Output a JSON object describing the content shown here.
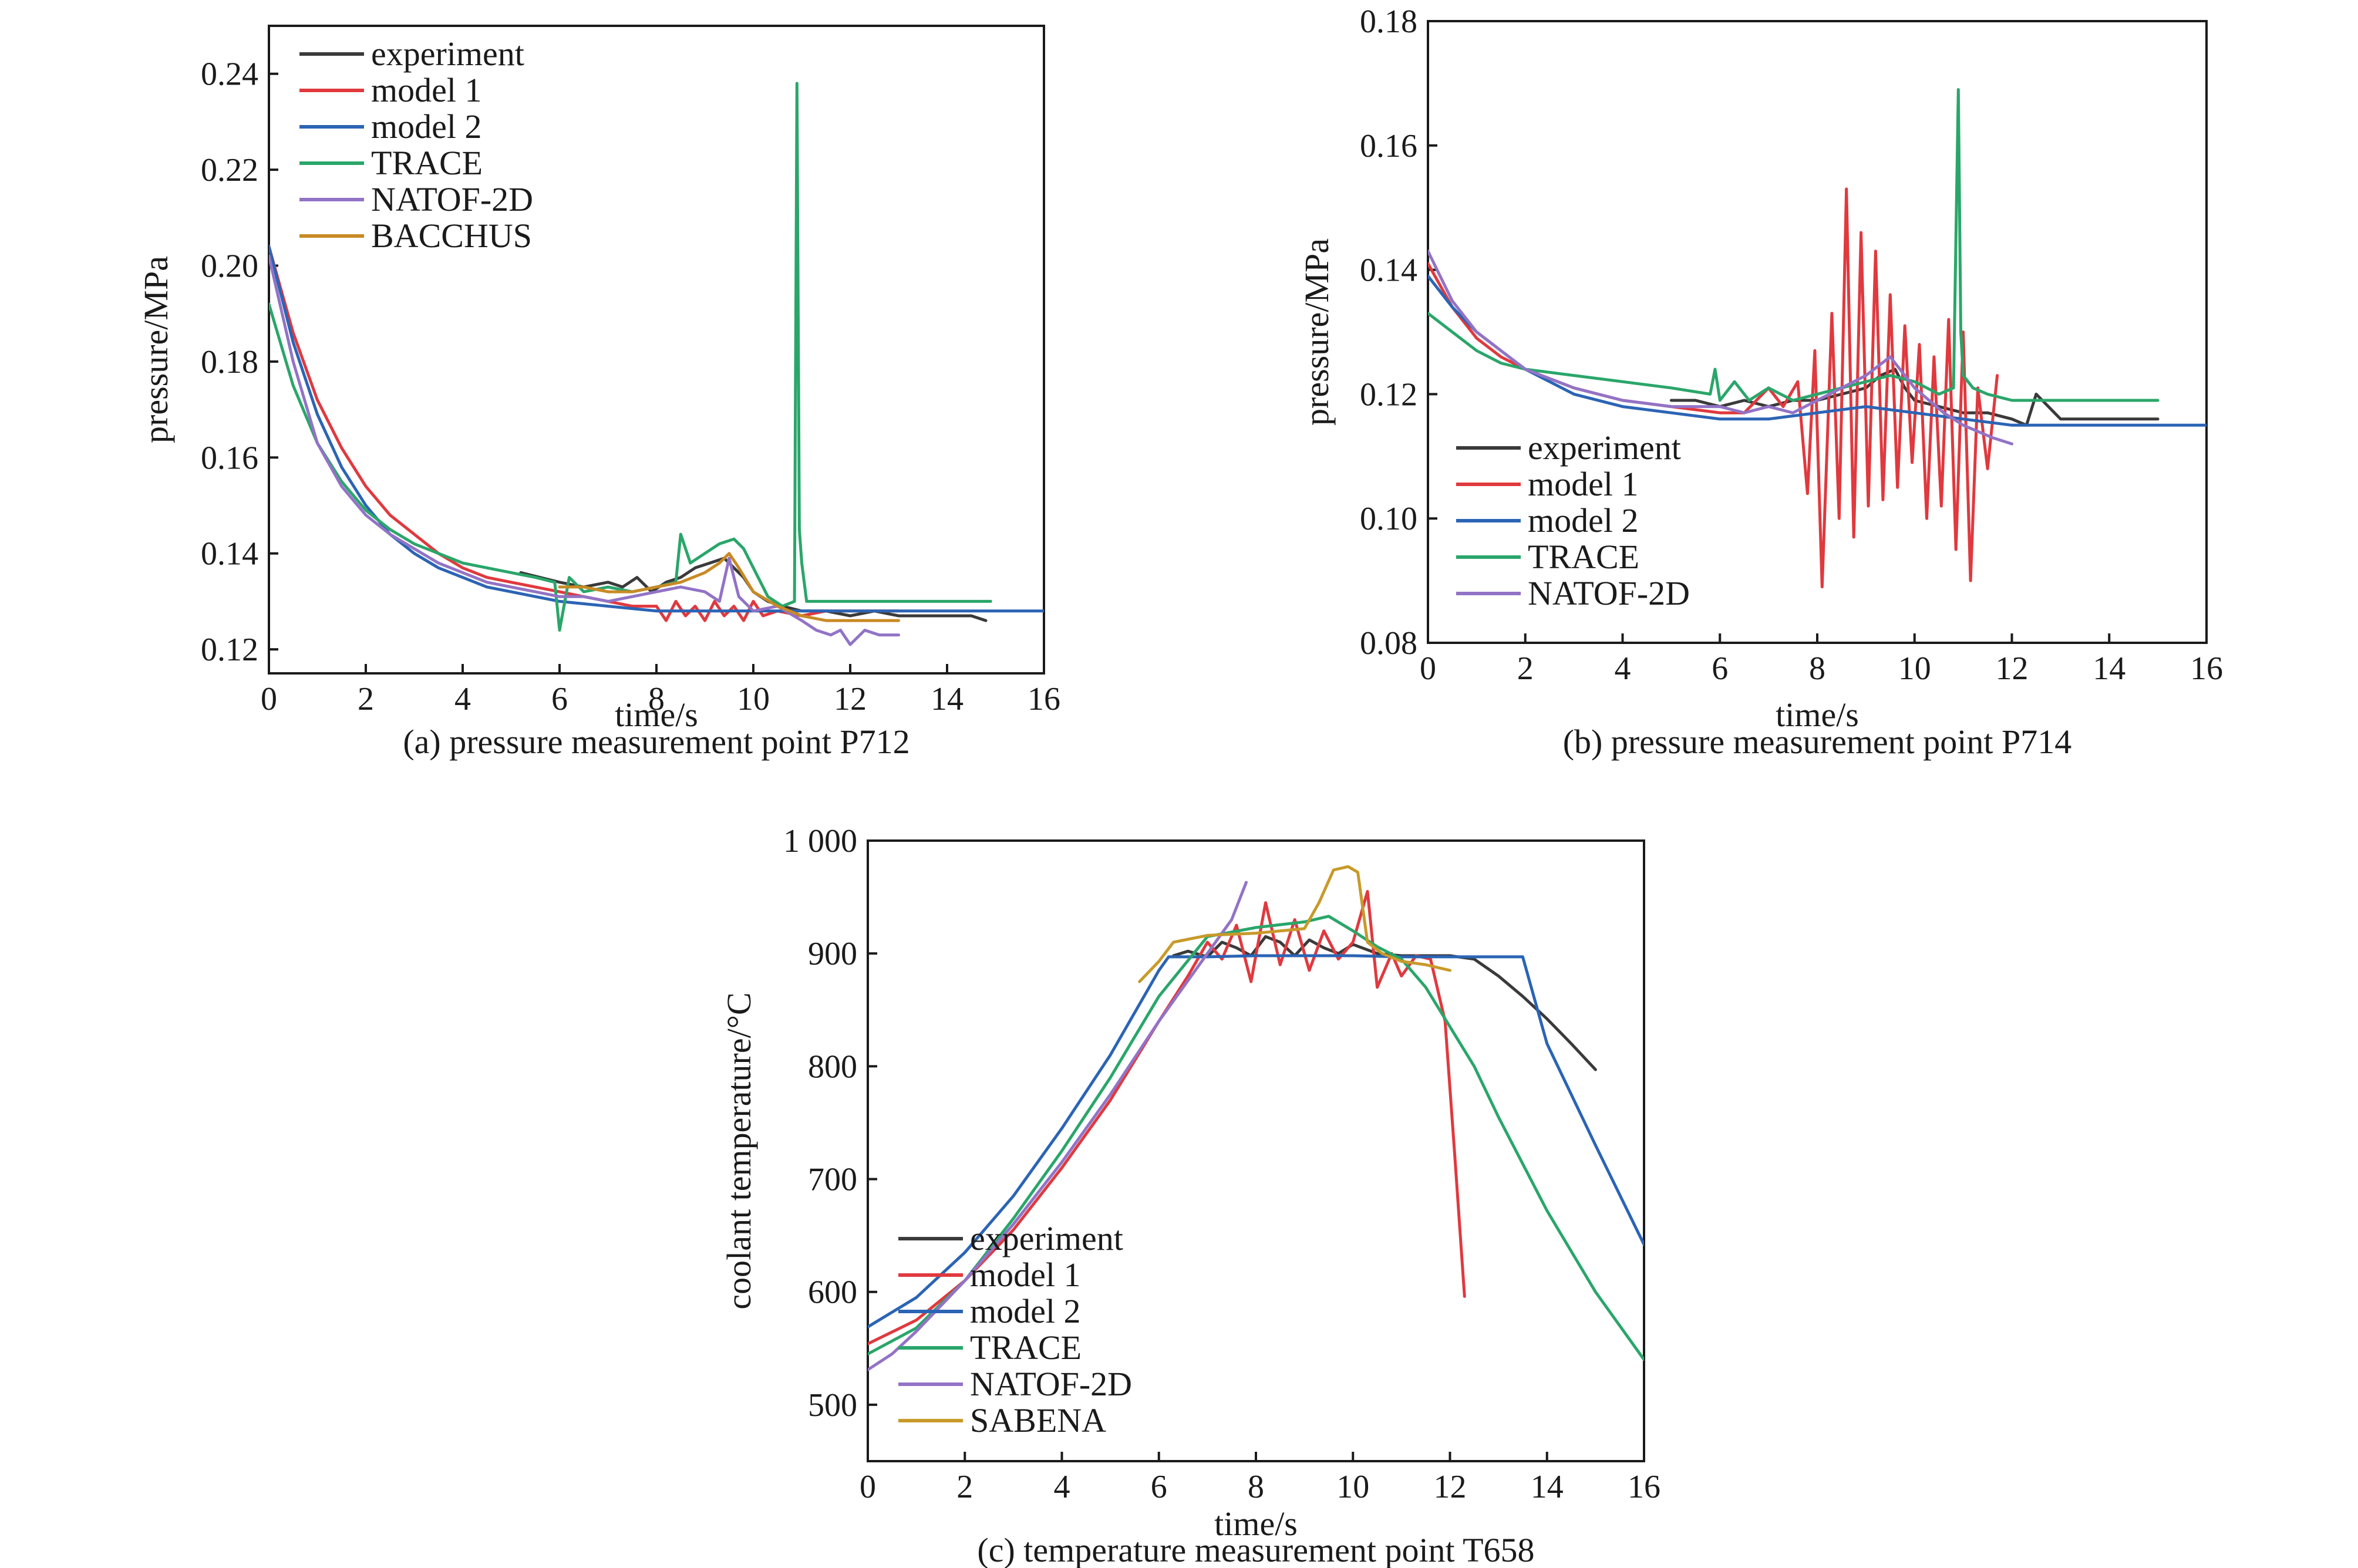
{
  "colors": {
    "experiment": "#3a3a3a",
    "model 1": "#e0393e",
    "model 2": "#2b64b5",
    "TRACE": "#2aa66a",
    "NATOF-2D": "#9273c6",
    "BACCHUS": "#c88a24",
    "SABENA": "#c89a2a"
  },
  "chart_data": [
    {
      "type": "line",
      "caption": "(a) pressure measurement point P712",
      "title": "",
      "xlabel": "time/s",
      "ylabel": "pressure/MPa",
      "xlim": [
        0,
        16
      ],
      "ylim": [
        0.115,
        0.25
      ],
      "xticks": [
        0,
        2,
        4,
        6,
        8,
        10,
        12,
        14,
        16
      ],
      "yticks": [
        0.12,
        0.14,
        0.16,
        0.18,
        0.2,
        0.22,
        0.24
      ],
      "ytick_labels": [
        "0.12",
        "0.14",
        "0.16",
        "0.18",
        "0.20",
        "0.22",
        "0.24"
      ],
      "legend_position": "top-left",
      "series": [
        {
          "name": "experiment",
          "x": [
            5.2,
            6.0,
            6.5,
            7.0,
            7.3,
            7.6,
            7.9,
            8.2,
            8.5,
            8.8,
            9.1,
            9.4,
            9.6,
            9.8,
            10.0,
            10.3,
            10.6,
            11.0,
            11.5,
            12.0,
            12.5,
            13.0,
            13.5,
            14.0,
            14.5,
            14.8
          ],
          "y": [
            0.136,
            0.134,
            0.133,
            0.134,
            0.133,
            0.135,
            0.132,
            0.134,
            0.135,
            0.137,
            0.138,
            0.139,
            0.137,
            0.135,
            0.132,
            0.13,
            0.129,
            0.128,
            0.128,
            0.127,
            0.128,
            0.127,
            0.127,
            0.127,
            0.127,
            0.126
          ]
        },
        {
          "name": "model 1",
          "x": [
            0,
            0.5,
            1,
            1.5,
            2,
            2.5,
            3,
            3.5,
            4,
            4.5,
            5,
            5.5,
            6,
            6.5,
            7,
            7.5,
            8,
            8.2,
            8.4,
            8.6,
            8.8,
            9.0,
            9.2,
            9.4,
            9.6,
            9.8,
            10.0,
            10.2,
            10.5,
            11.0,
            11.5,
            12.0,
            12.5,
            13.0
          ],
          "y": [
            0.204,
            0.186,
            0.172,
            0.162,
            0.154,
            0.148,
            0.144,
            0.14,
            0.137,
            0.135,
            0.134,
            0.133,
            0.132,
            0.131,
            0.13,
            0.129,
            0.129,
            0.126,
            0.13,
            0.127,
            0.129,
            0.126,
            0.13,
            0.127,
            0.129,
            0.126,
            0.13,
            0.127,
            0.128,
            0.127,
            0.128,
            0.128,
            0.128,
            0.128
          ]
        },
        {
          "name": "model 2",
          "x": [
            0,
            0.5,
            1,
            1.5,
            2,
            2.5,
            3,
            3.5,
            4,
            4.5,
            5,
            6,
            7,
            8,
            9,
            10,
            11,
            12,
            13,
            14,
            15,
            16
          ],
          "y": [
            0.204,
            0.184,
            0.169,
            0.158,
            0.15,
            0.144,
            0.14,
            0.137,
            0.135,
            0.133,
            0.132,
            0.13,
            0.129,
            0.128,
            0.128,
            0.128,
            0.128,
            0.128,
            0.128,
            0.128,
            0.128,
            0.128
          ]
        },
        {
          "name": "TRACE",
          "x": [
            0,
            0.5,
            1,
            1.5,
            2,
            2.5,
            3,
            3.5,
            4,
            4.5,
            5,
            5.5,
            5.9,
            6.0,
            6.2,
            6.5,
            7.0,
            7.5,
            8.0,
            8.4,
            8.5,
            8.7,
            9.0,
            9.3,
            9.6,
            9.8,
            10.0,
            10.3,
            10.6,
            10.85,
            10.9,
            10.95,
            11.0,
            11.1,
            11.5,
            12.0,
            13.0,
            14.0,
            14.9
          ],
          "y": [
            0.192,
            0.175,
            0.163,
            0.155,
            0.149,
            0.145,
            0.142,
            0.14,
            0.138,
            0.137,
            0.136,
            0.135,
            0.134,
            0.124,
            0.135,
            0.132,
            0.133,
            0.132,
            0.133,
            0.134,
            0.144,
            0.138,
            0.14,
            0.142,
            0.143,
            0.141,
            0.137,
            0.131,
            0.129,
            0.13,
            0.238,
            0.145,
            0.138,
            0.13,
            0.13,
            0.13,
            0.13,
            0.13,
            0.13
          ]
        },
        {
          "name": "NATOF-2D",
          "x": [
            0,
            0.5,
            1,
            1.5,
            2,
            2.5,
            3,
            3.5,
            4,
            4.5,
            5,
            5.5,
            6,
            6.5,
            7,
            7.5,
            8,
            8.5,
            9.0,
            9.3,
            9.5,
            9.7,
            10.0,
            10.5,
            11.0,
            11.3,
            11.6,
            11.8,
            12.0,
            12.3,
            12.6,
            13.0
          ],
          "y": [
            0.202,
            0.18,
            0.163,
            0.154,
            0.148,
            0.144,
            0.141,
            0.138,
            0.136,
            0.134,
            0.133,
            0.132,
            0.131,
            0.131,
            0.13,
            0.131,
            0.132,
            0.133,
            0.132,
            0.13,
            0.139,
            0.131,
            0.128,
            0.129,
            0.126,
            0.124,
            0.123,
            0.124,
            0.121,
            0.124,
            0.123,
            0.123
          ]
        },
        {
          "name": "BACCHUS",
          "x": [
            6.0,
            6.5,
            7.0,
            7.5,
            8.0,
            8.5,
            9.0,
            9.3,
            9.5,
            9.7,
            10.0,
            10.5,
            11.0,
            11.5,
            12.0,
            12.5,
            13.0
          ],
          "y": [
            0.133,
            0.133,
            0.132,
            0.132,
            0.133,
            0.134,
            0.136,
            0.138,
            0.14,
            0.137,
            0.132,
            0.129,
            0.127,
            0.126,
            0.126,
            0.126,
            0.126
          ]
        }
      ]
    },
    {
      "type": "line",
      "caption": "(b) pressure measurement point P714",
      "title": "",
      "xlabel": "time/s",
      "ylabel": "pressure/MPa",
      "xlim": [
        0,
        16
      ],
      "ylim": [
        0.08,
        0.18
      ],
      "xticks": [
        0,
        2,
        4,
        6,
        8,
        10,
        12,
        14,
        16
      ],
      "yticks": [
        0.08,
        0.1,
        0.12,
        0.14,
        0.16,
        0.18
      ],
      "ytick_labels": [
        "0.08",
        "0.10",
        "0.12",
        "0.14",
        "0.16",
        "0.18"
      ],
      "legend_position": "bottom-left",
      "series": [
        {
          "name": "experiment",
          "x": [
            5.0,
            5.5,
            6.0,
            6.5,
            7.0,
            7.5,
            8.0,
            8.5,
            9.0,
            9.3,
            9.6,
            9.8,
            10.0,
            10.5,
            11.0,
            11.5,
            12.0,
            12.3,
            12.5,
            13.0,
            14.0,
            15.0
          ],
          "y": [
            0.119,
            0.119,
            0.118,
            0.119,
            0.118,
            0.119,
            0.119,
            0.12,
            0.121,
            0.123,
            0.124,
            0.121,
            0.119,
            0.118,
            0.117,
            0.117,
            0.116,
            0.115,
            0.12,
            0.116,
            0.116,
            0.116
          ]
        },
        {
          "name": "model 1",
          "x": [
            0,
            0.5,
            1,
            1.5,
            2,
            3,
            4,
            5,
            6,
            6.5,
            7.0,
            7.3,
            7.6,
            7.8,
            7.95,
            8.1,
            8.3,
            8.45,
            8.6,
            8.75,
            8.9,
            9.05,
            9.2,
            9.35,
            9.5,
            9.65,
            9.8,
            9.95,
            10.1,
            10.25,
            10.4,
            10.55,
            10.7,
            10.85,
            11.0,
            11.15,
            11.3,
            11.5,
            11.7
          ],
          "y": [
            0.141,
            0.134,
            0.129,
            0.126,
            0.124,
            0.121,
            0.119,
            0.118,
            0.117,
            0.117,
            0.121,
            0.118,
            0.122,
            0.104,
            0.127,
            0.089,
            0.133,
            0.1,
            0.153,
            0.097,
            0.146,
            0.102,
            0.143,
            0.103,
            0.136,
            0.105,
            0.131,
            0.109,
            0.128,
            0.1,
            0.126,
            0.102,
            0.132,
            0.095,
            0.13,
            0.09,
            0.121,
            0.108,
            0.123
          ]
        },
        {
          "name": "model 2",
          "x": [
            0,
            0.5,
            1,
            1.5,
            2,
            2.5,
            3,
            4,
            5,
            6,
            7,
            8,
            9,
            10,
            11,
            12,
            13,
            14,
            15,
            16
          ],
          "y": [
            0.139,
            0.134,
            0.13,
            0.127,
            0.124,
            0.122,
            0.12,
            0.118,
            0.117,
            0.116,
            0.116,
            0.117,
            0.118,
            0.117,
            0.116,
            0.115,
            0.115,
            0.115,
            0.115,
            0.115
          ]
        },
        {
          "name": "TRACE",
          "x": [
            0,
            0.5,
            1,
            1.5,
            2,
            3,
            4,
            5,
            5.8,
            5.9,
            6.0,
            6.3,
            6.6,
            7.0,
            7.5,
            8.0,
            8.5,
            9.0,
            9.5,
            10.0,
            10.5,
            10.8,
            10.9,
            10.95,
            11.0,
            11.2,
            11.5,
            12.0,
            13.0,
            14.0,
            15.0
          ],
          "y": [
            0.133,
            0.13,
            0.127,
            0.125,
            0.124,
            0.123,
            0.122,
            0.121,
            0.12,
            0.124,
            0.119,
            0.122,
            0.119,
            0.121,
            0.119,
            0.12,
            0.121,
            0.122,
            0.123,
            0.122,
            0.12,
            0.121,
            0.169,
            0.13,
            0.123,
            0.121,
            0.12,
            0.119,
            0.119,
            0.119,
            0.119
          ]
        },
        {
          "name": "NATOF-2D",
          "x": [
            0,
            0.5,
            1,
            1.5,
            2,
            3,
            4,
            5,
            6,
            6.5,
            7,
            7.5,
            8,
            8.5,
            9,
            9.5,
            9.7,
            10,
            10.3,
            10.6,
            11,
            11.3,
            11.6,
            12.0
          ],
          "y": [
            0.143,
            0.135,
            0.13,
            0.127,
            0.124,
            0.121,
            0.119,
            0.118,
            0.118,
            0.117,
            0.118,
            0.117,
            0.119,
            0.121,
            0.123,
            0.126,
            0.124,
            0.121,
            0.119,
            0.117,
            0.115,
            0.114,
            0.113,
            0.112
          ]
        }
      ]
    },
    {
      "type": "line",
      "caption": "(c) temperature measurement point T658",
      "title": "",
      "xlabel": "time/s",
      "ylabel": "coolant temperature/°C",
      "xlim": [
        0,
        16
      ],
      "ylim": [
        450,
        1000
      ],
      "xticks": [
        0,
        2,
        4,
        6,
        8,
        10,
        12,
        14,
        16
      ],
      "yticks": [
        500,
        600,
        700,
        800,
        900,
        1000
      ],
      "ytick_labels": [
        "500",
        "600",
        "700",
        "800",
        "900",
        "1 000"
      ],
      "legend_position": "bottom-left",
      "series": [
        {
          "name": "experiment",
          "x": [
            6.3,
            6.6,
            7.0,
            7.3,
            7.6,
            7.9,
            8.2,
            8.5,
            8.8,
            9.1,
            9.4,
            9.7,
            10.0,
            10.5,
            11.0,
            11.5,
            12.0,
            12.5,
            13.0,
            13.5,
            14.0,
            14.5,
            15.0
          ],
          "y": [
            898,
            902,
            897,
            910,
            905,
            898,
            915,
            910,
            898,
            912,
            905,
            900,
            908,
            900,
            898,
            898,
            898,
            895,
            880,
            862,
            842,
            820,
            797
          ]
        },
        {
          "name": "model 1",
          "x": [
            0,
            1,
            2,
            3,
            4,
            5,
            6,
            6.6,
            7.0,
            7.3,
            7.6,
            7.9,
            8.2,
            8.5,
            8.8,
            9.1,
            9.4,
            9.7,
            10.0,
            10.3,
            10.5,
            10.8,
            11.0,
            11.3,
            11.6,
            11.9,
            12.1,
            12.3
          ],
          "y": [
            554,
            575,
            610,
            655,
            710,
            770,
            840,
            880,
            910,
            895,
            925,
            875,
            945,
            890,
            930,
            885,
            920,
            895,
            910,
            955,
            870,
            900,
            880,
            898,
            895,
            840,
            720,
            596
          ]
        },
        {
          "name": "model 2",
          "x": [
            0,
            1,
            2,
            3,
            4,
            5,
            6,
            6.2,
            7,
            8,
            9,
            10,
            11,
            12,
            13,
            13.5,
            14,
            15,
            16
          ],
          "y": [
            569,
            595,
            635,
            685,
            745,
            810,
            885,
            897,
            897,
            898,
            898,
            898,
            897,
            897,
            897,
            897,
            820,
            730,
            642
          ]
        },
        {
          "name": "TRACE",
          "x": [
            0,
            1,
            2,
            3,
            4,
            5,
            6,
            7,
            8,
            9,
            9.5,
            10,
            10.5,
            11,
            11.5,
            12,
            12.5,
            13,
            14,
            15,
            16
          ],
          "y": [
            545,
            568,
            610,
            665,
            725,
            790,
            862,
            915,
            923,
            928,
            933,
            920,
            906,
            895,
            870,
            835,
            800,
            755,
            672,
            600,
            540
          ]
        },
        {
          "name": "NATOF-2D",
          "x": [
            0,
            0.5,
            1,
            2,
            3,
            4,
            5,
            6,
            7,
            7.5,
            7.8
          ],
          "y": [
            531,
            545,
            565,
            610,
            660,
            715,
            775,
            840,
            900,
            930,
            963
          ]
        },
        {
          "name": "SABENA",
          "x": [
            5.6,
            6.0,
            6.3,
            7.0,
            8.0,
            9.0,
            9.3,
            9.6,
            9.9,
            10.1,
            10.3,
            10.6,
            11.0,
            11.5,
            12.0
          ],
          "y": [
            875,
            893,
            910,
            916,
            918,
            922,
            945,
            974,
            977,
            972,
            910,
            900,
            893,
            890,
            885
          ]
        }
      ]
    }
  ]
}
